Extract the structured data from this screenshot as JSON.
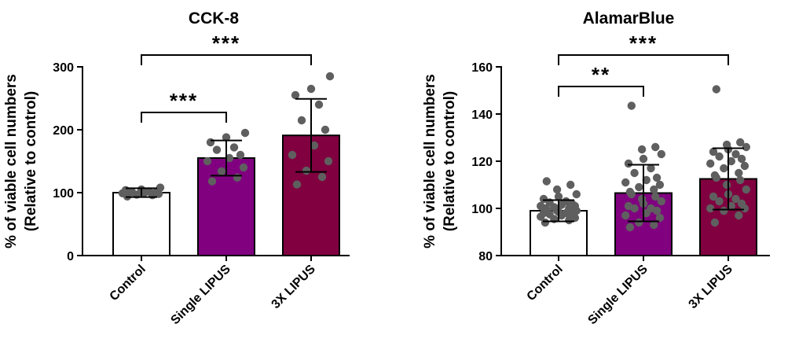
{
  "chart_data": [
    {
      "type": "bar",
      "title": "CCK-8",
      "ylabel": [
        "% of viable cell numbers",
        "(Relative to control)"
      ],
      "xlabel": "",
      "ylim": [
        0,
        300
      ],
      "yticks": [
        0,
        100,
        200,
        300
      ],
      "categories": [
        "Control",
        "Single LIPUS",
        "3X LIPUS"
      ],
      "colors": [
        "#ffffff",
        "#800080",
        "#800040"
      ],
      "values": [
        100,
        155,
        191
      ],
      "sd": [
        7,
        28,
        58
      ],
      "points": [
        [
          94,
          96,
          97,
          98,
          99,
          100,
          100,
          101,
          102,
          104,
          105,
          108
        ],
        [
          118,
          124,
          134,
          140,
          150,
          155,
          160,
          168,
          172,
          180,
          188,
          195
        ],
        [
          113,
          125,
          135,
          150,
          160,
          175,
          200,
          215,
          240,
          255,
          265,
          285
        ]
      ],
      "significance": [
        {
          "from": 0,
          "to": 1,
          "label": "***"
        },
        {
          "from": 0,
          "to": 2,
          "label": "***"
        }
      ]
    },
    {
      "type": "bar",
      "title": "AlamarBlue",
      "ylabel": [
        "% of viable cell numbers",
        "(Relative to control)"
      ],
      "xlabel": "",
      "ylim": [
        80,
        160
      ],
      "yticks": [
        80,
        100,
        120,
        140,
        160
      ],
      "categories": [
        "Control",
        "Single LIPUS",
        "3X LIPUS"
      ],
      "colors": [
        "#ffffff",
        "#800080",
        "#800040"
      ],
      "values": [
        99,
        106.5,
        112.5
      ],
      "sd": [
        4.5,
        12,
        13
      ],
      "points": [
        [
          94,
          95,
          95.5,
          96,
          96.5,
          97,
          97,
          97.5,
          98,
          98,
          98.5,
          99,
          99,
          99,
          99.5,
          100,
          100,
          100.5,
          101,
          101,
          101.5,
          102,
          102.5,
          103,
          104,
          105,
          106,
          108,
          110,
          111.5
        ],
        [
          92,
          93,
          94,
          96,
          97,
          98,
          99,
          100,
          100,
          101,
          102,
          103,
          104,
          105,
          106,
          107,
          108,
          109,
          110,
          111,
          112,
          113,
          115,
          117,
          119,
          121,
          123,
          125,
          126,
          143.5
        ],
        [
          94,
          97,
          99,
          100,
          100,
          101,
          102,
          103,
          104,
          105,
          106,
          108,
          110,
          112,
          113,
          114,
          115,
          117,
          118,
          119,
          120,
          121,
          122,
          123,
          124,
          125,
          126,
          127,
          128,
          150.5
        ]
      ],
      "significance": [
        {
          "from": 0,
          "to": 1,
          "label": "**"
        },
        {
          "from": 0,
          "to": 2,
          "label": "***"
        }
      ]
    }
  ]
}
